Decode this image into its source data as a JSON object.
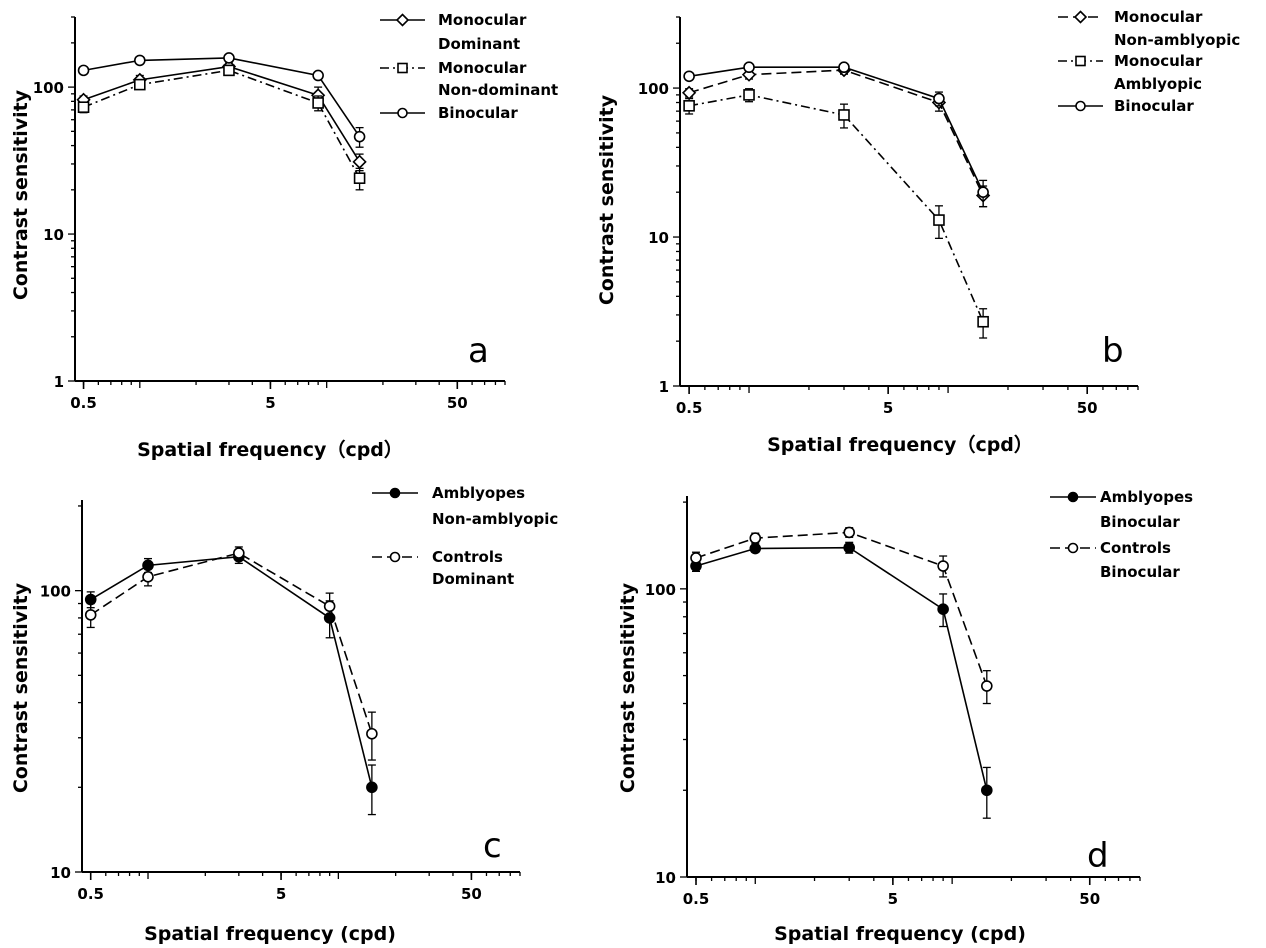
{
  "chart_data": [
    {
      "type": "line",
      "panel_label": "a",
      "xlabel": "Spatial frequency（cpd）",
      "ylabel": "Contrast sensitivity",
      "x_scale": "log",
      "y_scale": "log",
      "xlim": [
        0.45,
        90
      ],
      "ylim": [
        1,
        300
      ],
      "x_ticks": [
        0.5,
        5,
        50
      ],
      "x_tick_labels": [
        "0.5",
        "5",
        "50"
      ],
      "y_ticks": [
        1,
        10,
        100
      ],
      "y_tick_labels": [
        "1",
        "10",
        "100"
      ],
      "legend_position": "top-right",
      "series": [
        {
          "name_lines": [
            "Monocular",
            "Dominant"
          ],
          "marker": "diamond",
          "fill": "open",
          "dash": "solid",
          "x": [
            0.5,
            1,
            3,
            9,
            15
          ],
          "y": [
            82,
            112,
            138,
            88,
            31
          ],
          "err": [
            5,
            8,
            10,
            12,
            4
          ]
        },
        {
          "name_lines": [
            "Monocular",
            "Non-dominant"
          ],
          "marker": "square",
          "fill": "open",
          "dash": "dashdot",
          "x": [
            0.5,
            1,
            3,
            9,
            15
          ],
          "y": [
            73,
            104,
            130,
            78,
            24
          ],
          "err": [
            6,
            7,
            9,
            9,
            4
          ]
        },
        {
          "name_lines": [
            "Binocular"
          ],
          "marker": "circle",
          "fill": "open",
          "dash": "solid",
          "x": [
            0.5,
            1,
            3,
            9,
            15
          ],
          "y": [
            130,
            152,
            158,
            120,
            46
          ],
          "err": [
            5,
            5,
            6,
            5,
            7
          ]
        }
      ]
    },
    {
      "type": "line",
      "panel_label": "b",
      "xlabel": "Spatial frequency（cpd）",
      "ylabel": "Contrast sensitivity",
      "x_scale": "log",
      "y_scale": "log",
      "xlim": [
        0.45,
        90
      ],
      "ylim": [
        1,
        300
      ],
      "x_ticks": [
        0.5,
        5,
        50
      ],
      "x_tick_labels": [
        "0.5",
        "5",
        "50"
      ],
      "y_ticks": [
        1,
        10,
        100
      ],
      "y_tick_labels": [
        "1",
        "10",
        "100"
      ],
      "legend_position": "top-right",
      "series": [
        {
          "name_lines": [
            "Monocular",
            "Non-amblyopic"
          ],
          "marker": "diamond",
          "fill": "open",
          "dash": "dashed",
          "x": [
            0.5,
            1,
            3,
            9,
            15
          ],
          "y": [
            93,
            123,
            132,
            80,
            19
          ],
          "err": [
            6,
            8,
            8,
            10,
            3
          ]
        },
        {
          "name_lines": [
            "Monocular",
            "Amblyopic"
          ],
          "marker": "square",
          "fill": "open",
          "dash": "dashdot",
          "x": [
            0.5,
            1,
            3,
            9,
            15
          ],
          "y": [
            76,
            90,
            66,
            13,
            2.7
          ],
          "err": [
            9,
            9,
            12,
            3.2,
            0.6
          ]
        },
        {
          "name_lines": [
            "Binocular"
          ],
          "marker": "circle",
          "fill": "open",
          "dash": "solid",
          "x": [
            0.5,
            1,
            3,
            9,
            15
          ],
          "y": [
            120,
            138,
            138,
            85,
            20
          ],
          "err": [
            5,
            5,
            6,
            9,
            4
          ]
        }
      ]
    },
    {
      "type": "line",
      "panel_label": "c",
      "xlabel": "Spatial frequency (cpd)",
      "ylabel": "Contrast sensitivity",
      "x_scale": "log",
      "y_scale": "log",
      "xlim": [
        0.45,
        90
      ],
      "ylim": [
        10,
        210
      ],
      "x_ticks": [
        0.5,
        5,
        50
      ],
      "x_tick_labels": [
        "0.5",
        "5",
        "50"
      ],
      "y_ticks": [
        10,
        100
      ],
      "y_tick_labels": [
        "10",
        "100"
      ],
      "legend_position": "top-right",
      "series": [
        {
          "name_lines": [
            "Amblyopes",
            "Non-amblyopic"
          ],
          "marker": "circle",
          "fill": "filled",
          "dash": "solid",
          "x": [
            0.5,
            1,
            3,
            9,
            15
          ],
          "y": [
            93,
            123,
            132,
            80,
            20
          ],
          "err": [
            6,
            7,
            7,
            12,
            4
          ]
        },
        {
          "name_lines": [
            "Controls",
            "Dominant"
          ],
          "marker": "circle",
          "fill": "open",
          "dash": "dashed",
          "x": [
            0.5,
            1,
            3,
            9,
            15
          ],
          "y": [
            82,
            112,
            136,
            88,
            31
          ],
          "err": [
            8,
            8,
            7,
            10,
            6
          ]
        }
      ]
    },
    {
      "type": "line",
      "panel_label": "d",
      "xlabel": "Spatial frequency (cpd)",
      "ylabel": "Contrast sensitivity",
      "x_scale": "log",
      "y_scale": "log",
      "xlim": [
        0.45,
        90
      ],
      "ylim": [
        10,
        210
      ],
      "x_ticks": [
        0.5,
        5,
        50
      ],
      "x_tick_labels": [
        "0.5",
        "5",
        "50"
      ],
      "y_ticks": [
        10,
        100
      ],
      "y_tick_labels": [
        "10",
        "100"
      ],
      "legend_position": "top-right",
      "series": [
        {
          "name_lines": [
            "Amblyopes",
            "Binocular"
          ],
          "marker": "circle",
          "fill": "filled",
          "dash": "solid",
          "x": [
            0.5,
            1,
            3,
            9,
            15
          ],
          "y": [
            120,
            138,
            139,
            85,
            20
          ],
          "err": [
            5,
            4,
            6,
            11,
            4
          ]
        },
        {
          "name_lines": [
            "Controls",
            "Binocular"
          ],
          "marker": "circle",
          "fill": "open",
          "dash": "dashed",
          "x": [
            0.5,
            1,
            3,
            9,
            15
          ],
          "y": [
            128,
            150,
            157,
            120,
            46
          ],
          "err": [
            6,
            6,
            6,
            10,
            6
          ]
        }
      ]
    }
  ]
}
